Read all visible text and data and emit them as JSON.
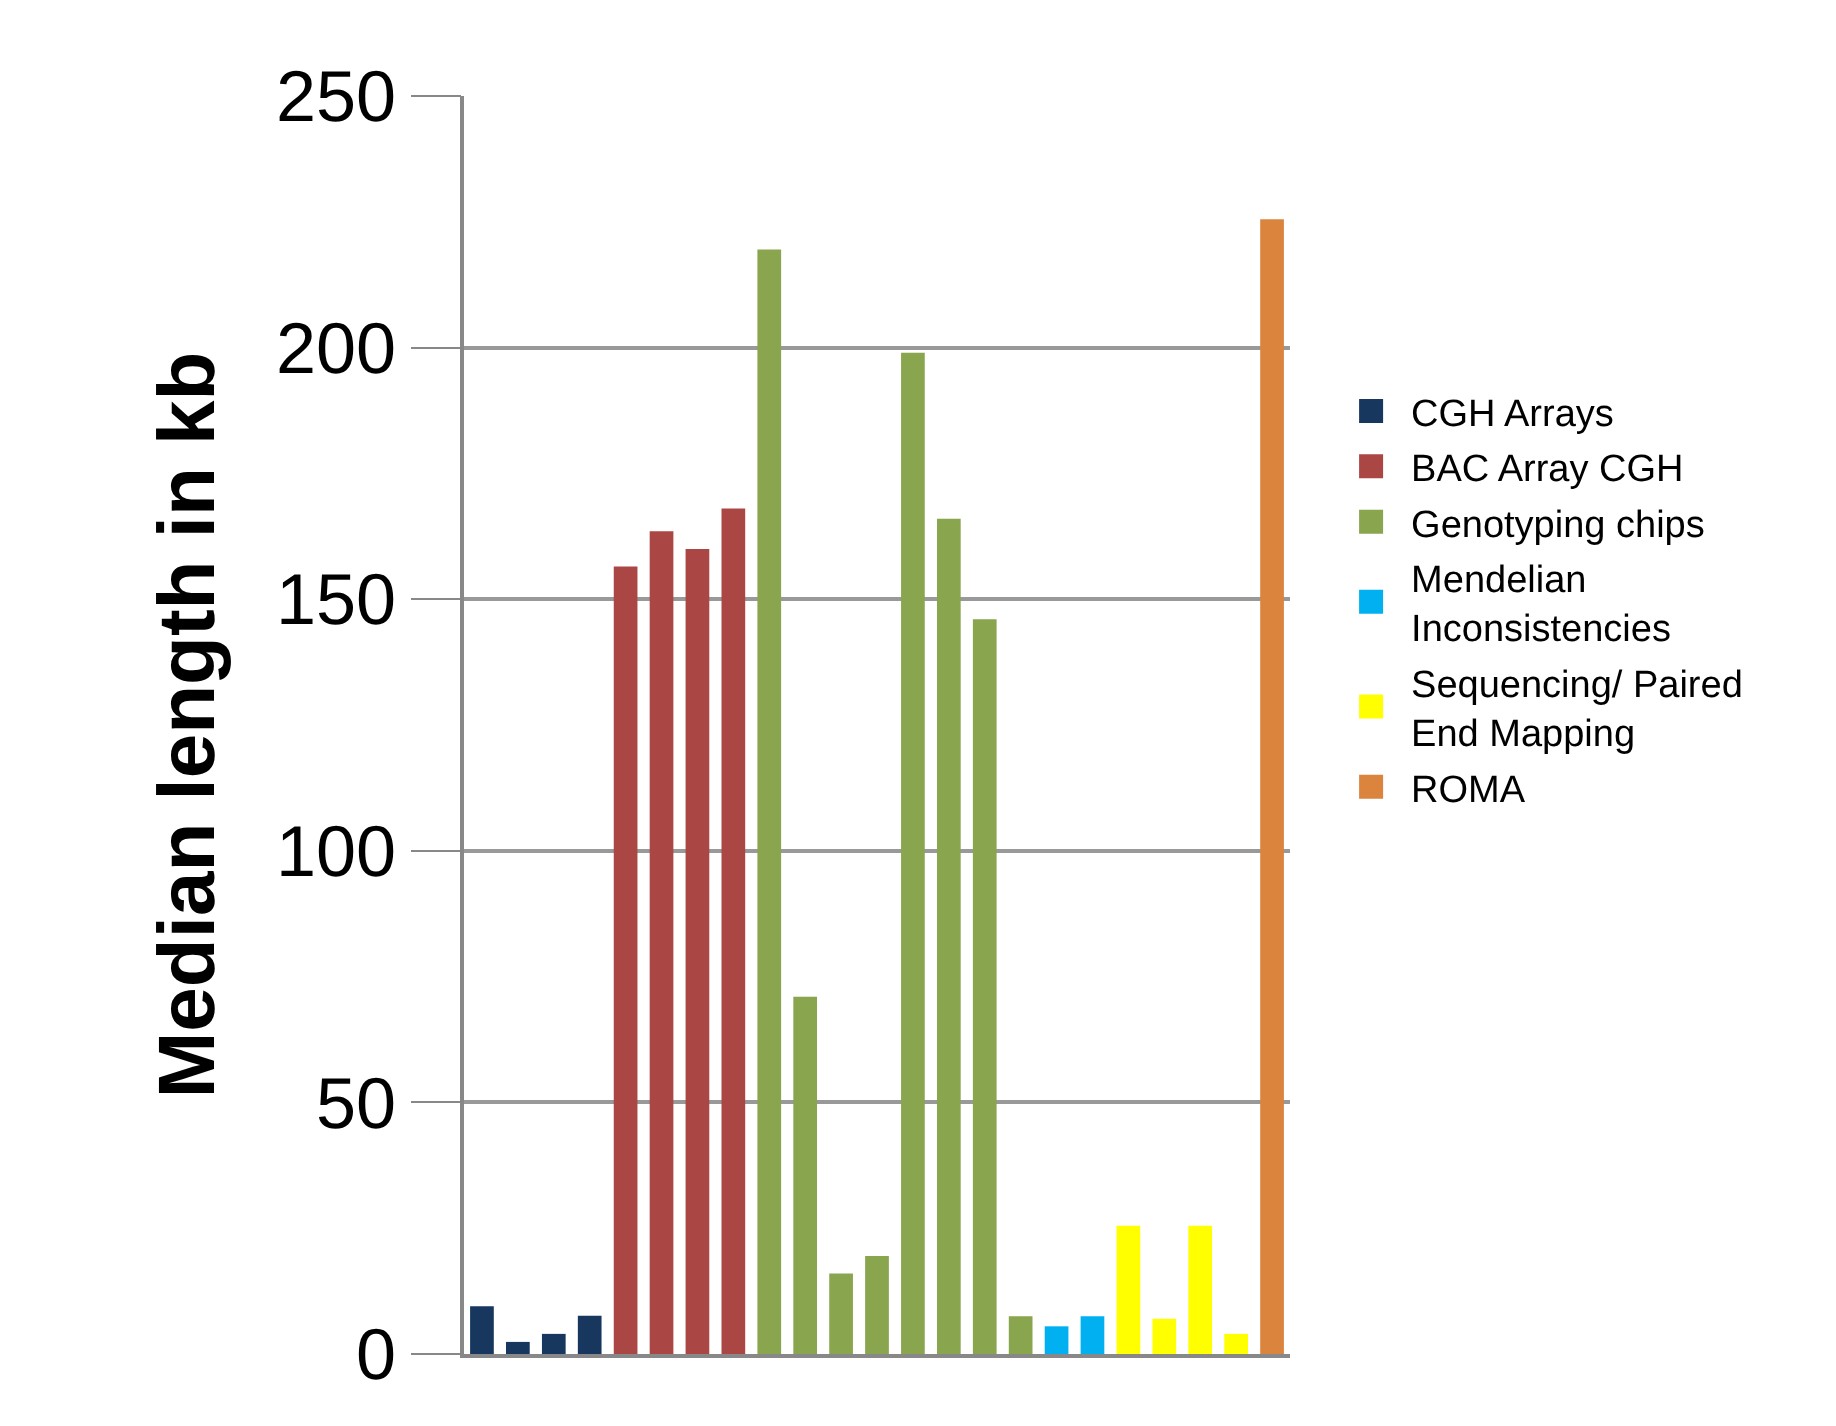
{
  "chart_data": {
    "type": "bar",
    "ylabel": "Median length in kb",
    "categories": [
      null,
      null,
      null,
      null,
      null,
      null,
      null,
      null,
      null,
      null,
      null,
      null,
      null,
      null,
      null,
      null,
      null,
      null,
      null,
      null,
      null,
      null,
      null
    ],
    "series": [
      {
        "name": "CGH Arrays",
        "color": "#17375e",
        "values": [
          9.5,
          2.4,
          4,
          7.6,
          null,
          null,
          null,
          null,
          null,
          null,
          null,
          null,
          null,
          null,
          null,
          null,
          null,
          null,
          null,
          null,
          null,
          null,
          null
        ]
      },
      {
        "name": "BAC Array CGH",
        "color": "#aa4643",
        "values": [
          null,
          null,
          null,
          null,
          156.5,
          163.5,
          160,
          168,
          null,
          null,
          null,
          null,
          null,
          null,
          null,
          null,
          null,
          null,
          null,
          null,
          null,
          null,
          null
        ]
      },
      {
        "name": "Genotyping chips",
        "color": "#89a54e",
        "values": [
          null,
          null,
          null,
          null,
          null,
          null,
          null,
          null,
          219.5,
          71,
          16,
          19.5,
          199,
          166,
          146,
          7.5,
          null,
          null,
          null,
          null,
          null,
          null,
          null
        ]
      },
      {
        "name": "Mendelian Inconsistencies",
        "color": "#00b0f0",
        "values": [
          null,
          null,
          null,
          null,
          null,
          null,
          null,
          null,
          null,
          null,
          null,
          null,
          null,
          null,
          null,
          null,
          5.5,
          7.5,
          null,
          null,
          null,
          null,
          null
        ]
      },
      {
        "name": "Sequencing/ Paired End Mapping",
        "color": "#ffff00",
        "values": [
          null,
          null,
          null,
          null,
          null,
          null,
          null,
          null,
          null,
          null,
          null,
          null,
          null,
          null,
          null,
          null,
          null,
          null,
          25.5,
          7,
          25.5,
          4,
          null
        ]
      },
      {
        "name": "ROMA",
        "color": "#db843d",
        "values": [
          null,
          null,
          null,
          null,
          null,
          null,
          null,
          null,
          null,
          null,
          null,
          null,
          null,
          null,
          null,
          null,
          null,
          null,
          null,
          null,
          null,
          null,
          225.5
        ]
      }
    ],
    "ylim": [
      0,
      250
    ],
    "yticks": [
      0,
      50,
      100,
      150,
      200,
      250
    ],
    "grid": "y",
    "legend": "right"
  }
}
